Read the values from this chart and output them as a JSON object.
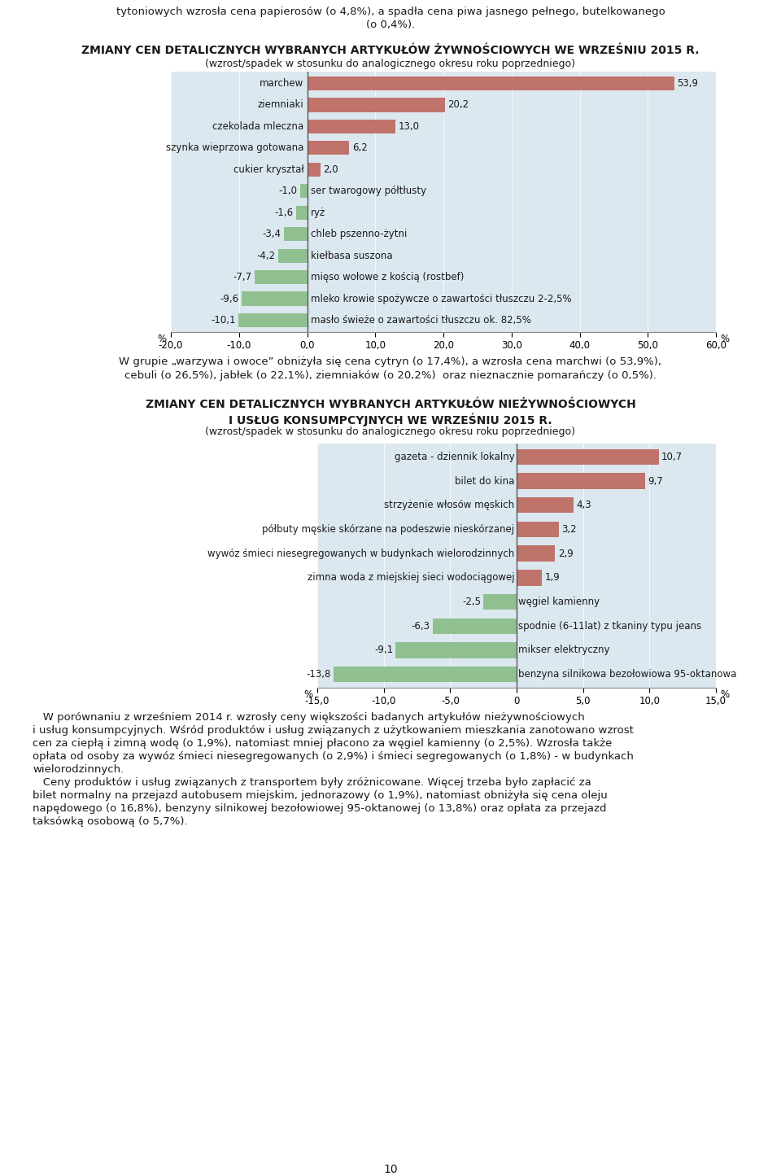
{
  "intro_text_line1": "tytoniowych wzrosła cena papierosów (o 4,8%), a spadła cena piwa jasnego pełnego, butelkowanego",
  "intro_text_line2": "(o 0,4%).",
  "chart1_title": "ZMIANY CEN DETALICZNYCH WYBRANYCH ARTYKUŁÓW ŻYWNOŚCIOWYCH WE WRZEŚNIU 2015 R.",
  "chart1_subtitle": "(wzrost/spadek w stosunku do analogicznego okresu roku poprzedniego)",
  "chart1_categories": [
    "masło świeże o zawartości tłuszczu ok. 82,5%",
    "mleko krowie spożywcze o zawartości tłuszczu 2-2,5%",
    "mięso wołowe z kością (rostbef)",
    "kiełbasa suszona",
    "chleb pszenno-żytni",
    "ryż",
    "ser twarogowy półtłusty",
    "cukier kryształ",
    "szynka wieprzowa gotowana",
    "czekolada mleczna",
    "ziemniaki",
    "marchew"
  ],
  "chart1_values": [
    -10.1,
    -9.6,
    -7.7,
    -4.2,
    -3.4,
    -1.6,
    -1.0,
    2.0,
    6.2,
    13.0,
    20.2,
    53.9
  ],
  "chart1_value_labels": [
    "-10,1",
    "-9,6",
    "-7,7",
    "-4,2",
    "-3,4",
    "-1,6",
    "-1,0",
    "2,0",
    "6,2",
    "13,0",
    "20,2",
    "53,9"
  ],
  "chart1_xlim": [
    -20.0,
    60.0
  ],
  "chart1_xticks": [
    -20.0,
    -10.0,
    0.0,
    10.0,
    20.0,
    30.0,
    40.0,
    50.0,
    60.0
  ],
  "chart1_xtick_labels": [
    "-20,0",
    "-10,0",
    "0,0",
    "10,0",
    "20,0",
    "30,0",
    "40,0",
    "50,0",
    "60,0"
  ],
  "mid_text_line1": "W grupie „warzywa i owoce” obniżyła się cena cytryn (o 17,4%), a wzrosła cena marchwi (o 53,9%),",
  "mid_text_line2": "cebuli (o 26,5%), jabłek (o 22,1%), ziemniaków (o 20,2%)  oraz nieznacznie pomarańczy (o 0,5%).",
  "chart2_title_line1": "ZMIANY CEN DETALICZNYCH WYBRANYCH ARTYKUŁÓW NIEŻYWNOŚCIOWYCH",
  "chart2_title_line2": "I USŁUG KONSUMPCYJNYCH WE WRZEŚNIU 2015 R.",
  "chart2_subtitle": "(wzrost/spadek w stosunku do analogicznego okresu roku poprzedniego)",
  "chart2_categories": [
    "benzyna silnikowa bezołowiowa 95-oktanowa",
    "mikser elektryczny",
    "spodnie (6-11lat) z tkaniny typu jeans",
    "węgiel kamienny",
    "zimna woda z miejskiej sieci wodociągowej",
    "wywóz śmieci niesegregowanych w budynkach wielorodzinnych",
    "półbuty męskie skórzane na podeszwie nieskórzanej",
    "strzyżenie włosów męskich",
    "bilet do kina",
    "gazeta - dziennik lokalny"
  ],
  "chart2_values": [
    -13.8,
    -9.1,
    -6.3,
    -2.5,
    1.9,
    2.9,
    3.2,
    4.3,
    9.7,
    10.7
  ],
  "chart2_value_labels": [
    "-13,8",
    "-9,1",
    "-6,3",
    "-2,5",
    "1,9",
    "2,9",
    "3,2",
    "4,3",
    "9,7",
    "10,7"
  ],
  "chart2_xlim": [
    -15.0,
    15.0
  ],
  "chart2_xticks": [
    -15.0,
    -10.0,
    -5.0,
    0.0,
    5.0,
    10.0,
    15.0
  ],
  "chart2_xtick_labels": [
    "-15,0",
    "-10,0",
    "-5,0",
    "0",
    "5,0",
    "10,0",
    "15,0"
  ],
  "outro_lines": [
    "   W porównaniu z wrześniem 2014 r. wzrosły ceny większości badanych artykułów nieżywnościowych",
    "i usług konsumpcyjnych. Wśród produktów i usług związanych z użytkowaniem mieszkania zanotowano wzrost",
    "cen za ciepłą i zimną wodę (o 1,9%), natomiast mniej płacono za węgiel kamienny (o 2,5%). Wzrosła także",
    "opłata od osoby za wywóz śmieci niesegregowanych (o 2,9%) i śmieci segregowanych (o 1,8%) - w budynkach",
    "wielorodzinnych.",
    "   Ceny produktów i usług związanych z transportem były zróżnicowane. Więcej trzeba było zapłacić za",
    "bilet normalny na przejazd autobusem miejskim, jednorazowy (o 1,9%), natomiast obniżyła się cena oleju",
    "napędowego (o 16,8%), benzyny silnikowej bezołowiowej 95-oktanowej (o 13,8%) oraz opłata za przejazd",
    "taksówką osobową (o 5,7%)."
  ],
  "page_number": "10",
  "color_positive": "#c0736a",
  "color_negative": "#90c090",
  "color_bg": "#dce8f0",
  "color_text": "#1a1a1a",
  "color_zero_line": "#555555"
}
